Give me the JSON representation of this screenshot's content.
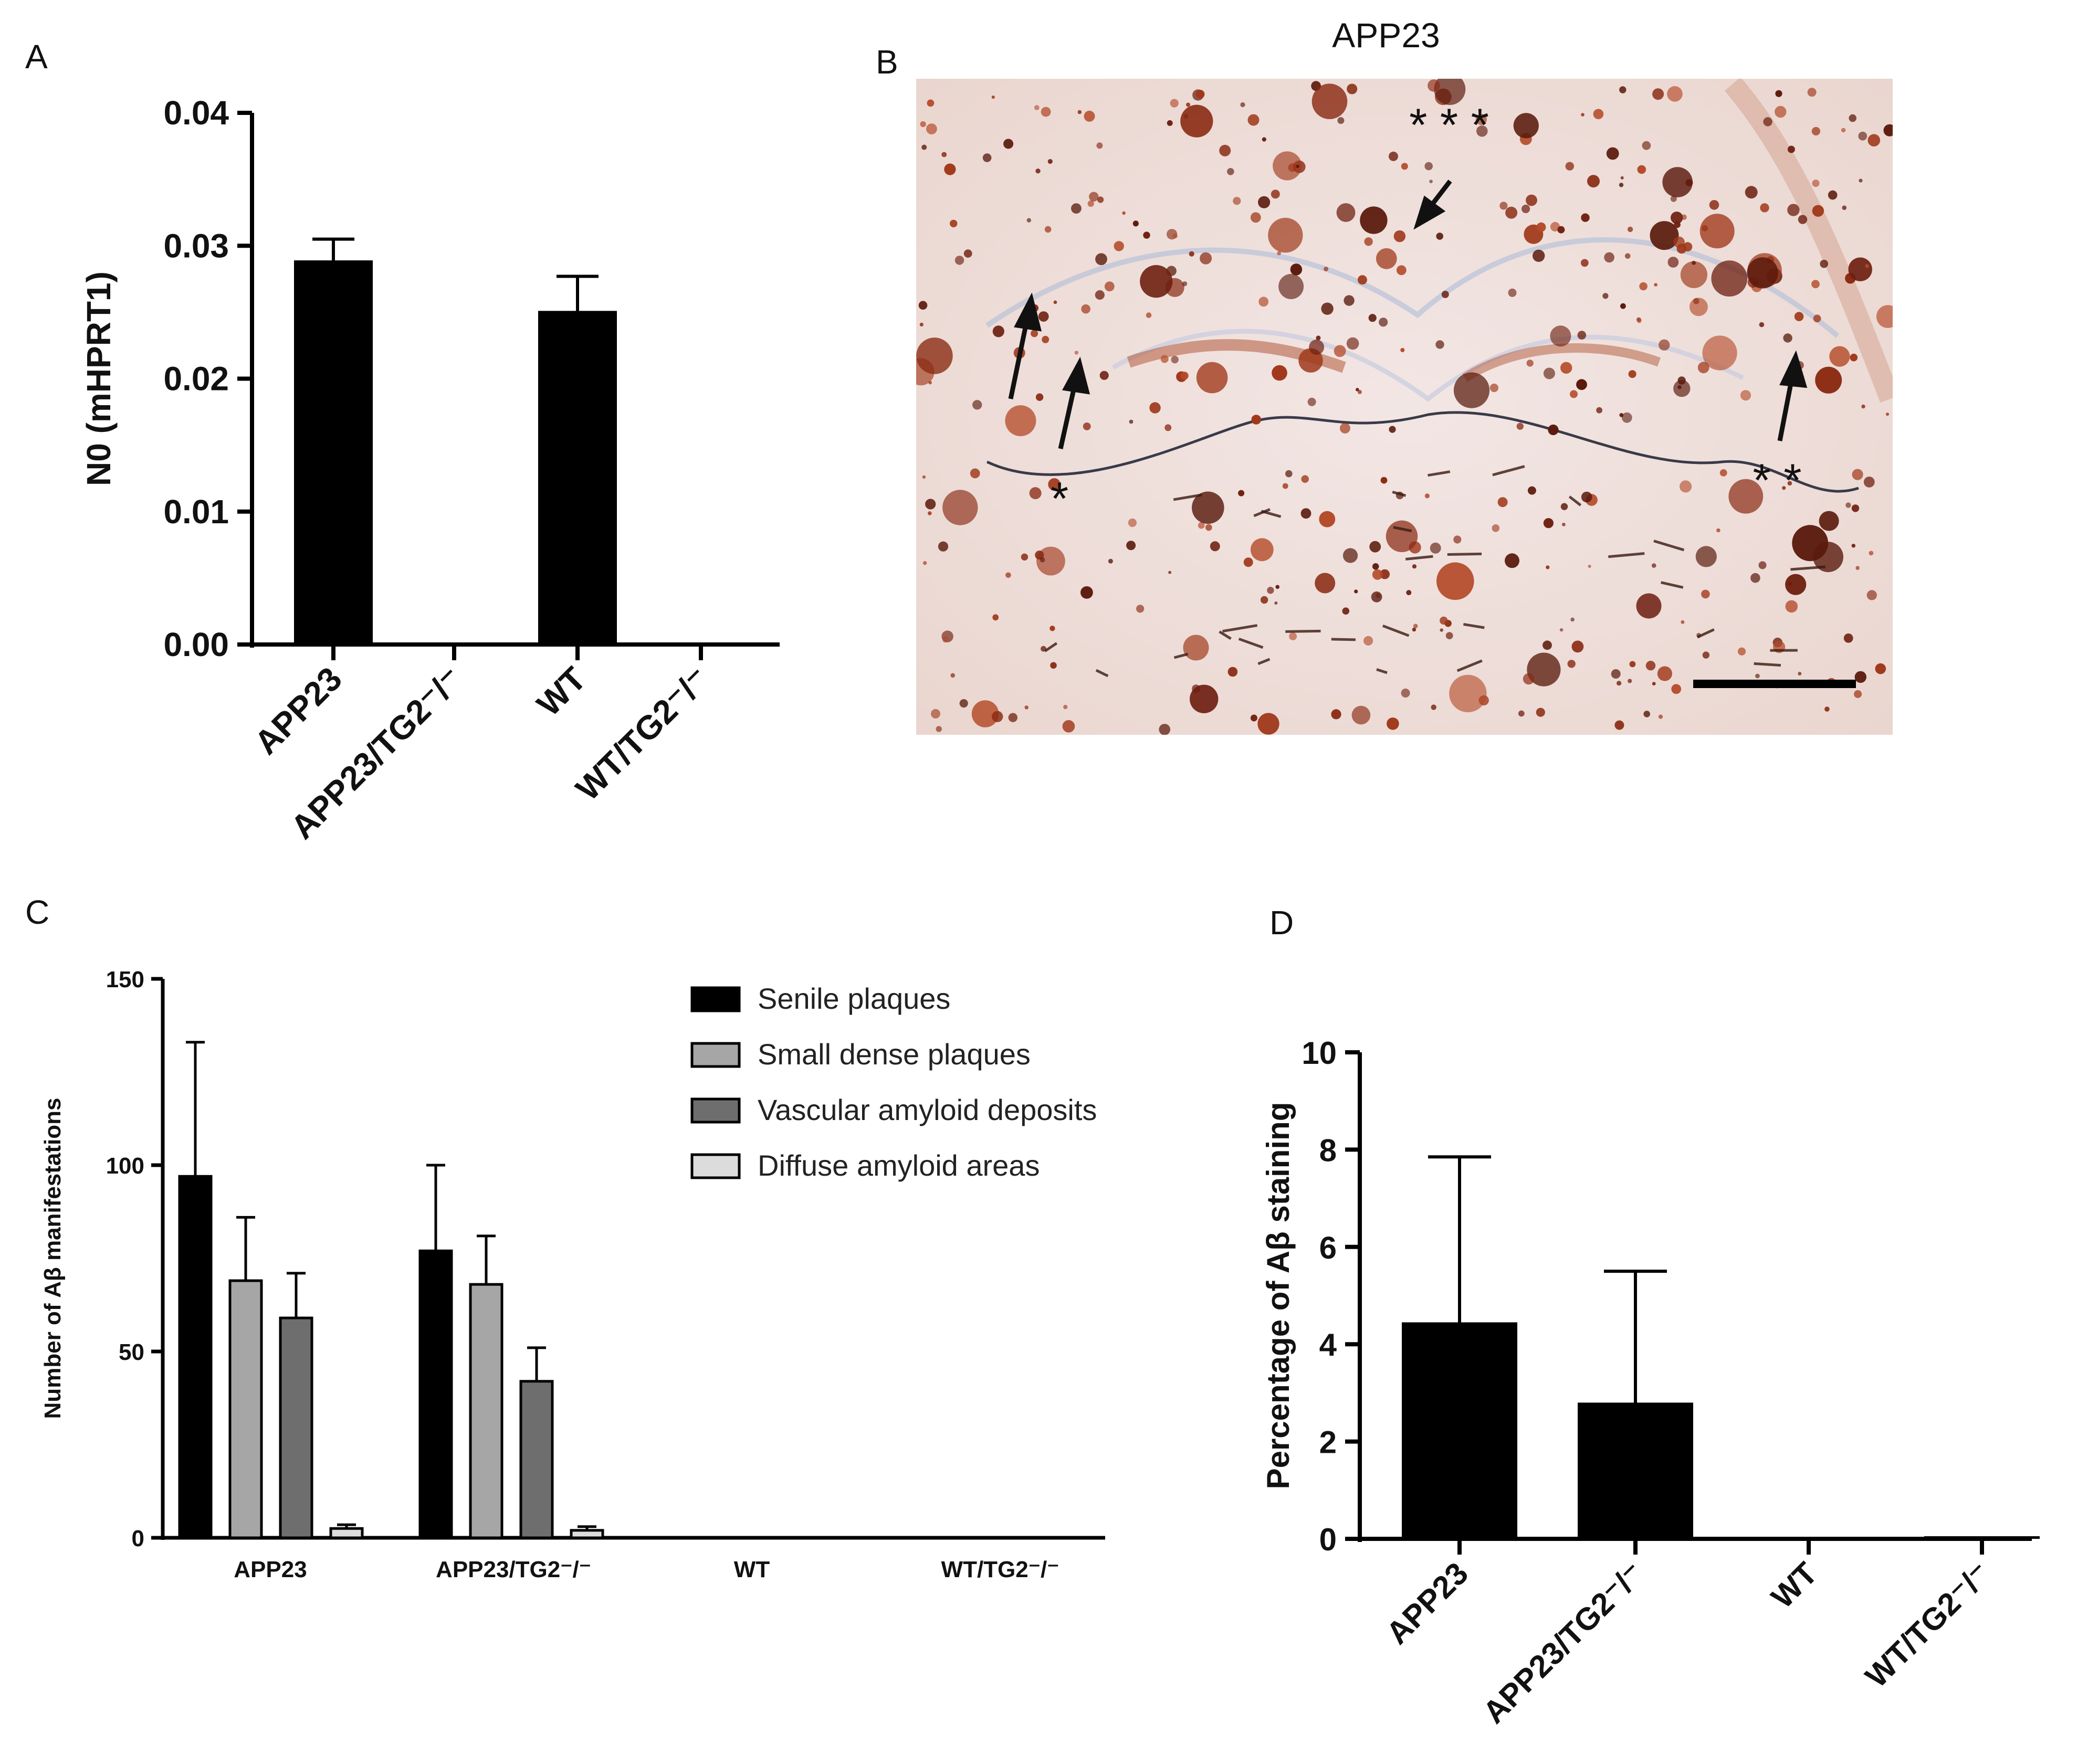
{
  "figure": {
    "panels": {
      "A": {
        "label": "A"
      },
      "B": {
        "label": "B",
        "title": "APP23",
        "annotations": [
          "* * *",
          "*",
          "* *"
        ]
      },
      "C": {
        "label": "C"
      },
      "D": {
        "label": "D"
      }
    }
  },
  "chart_data": [
    {
      "panel": "A",
      "type": "bar",
      "categories": [
        "APP23",
        "APP23/TG2⁻/⁻",
        "WT",
        "WT/TG2⁻/⁻"
      ],
      "values": [
        0.0289,
        0,
        0.0251,
        0
      ],
      "errors": [
        0.0016,
        0,
        0.0026,
        0
      ],
      "ylabel": "N0 (mHPRT1)",
      "ylim": [
        0,
        0.04
      ],
      "yticks": [
        "0.00",
        "0.01",
        "0.02",
        "0.03",
        "0.04"
      ],
      "colors": {
        "bar": "#000000"
      }
    },
    {
      "panel": "C",
      "type": "bar",
      "categories": [
        "APP23",
        "APP23/TG2⁻/⁻",
        "WT",
        "WT/TG2⁻/⁻"
      ],
      "series": [
        {
          "name": "Senile plaques",
          "values": [
            97,
            77,
            0,
            0
          ],
          "errors": [
            36,
            23,
            0,
            0
          ],
          "color": "#000000"
        },
        {
          "name": "Small dense plaques",
          "values": [
            69,
            68,
            0,
            0
          ],
          "errors": [
            17,
            13,
            0,
            0
          ],
          "color": "#a6a6a6"
        },
        {
          "name": "Vascular amyloid deposits",
          "values": [
            59,
            42,
            0,
            0
          ],
          "errors": [
            12,
            9,
            0,
            0
          ],
          "color": "#6e6e6e"
        },
        {
          "name": "Diffuse amyloid areas",
          "values": [
            2.5,
            2,
            0,
            0
          ],
          "errors": [
            1,
            1,
            0,
            0
          ],
          "color": "#dcdcdc"
        }
      ],
      "ylabel": "Number of Aβ manifestations",
      "ylim": [
        0,
        150
      ],
      "yticks": [
        "0",
        "50",
        "100",
        "150"
      ],
      "legend": "top-right"
    },
    {
      "panel": "D",
      "type": "bar",
      "categories": [
        "APP23",
        "APP23/TG2⁻/⁻",
        "WT",
        "WT/TG2⁻/⁻"
      ],
      "values": [
        4.45,
        2.8,
        0,
        0.05
      ],
      "errors": [
        3.4,
        2.7,
        0,
        0
      ],
      "ylabel": "Percentage of Aβ staining",
      "ylim": [
        0,
        10
      ],
      "yticks": [
        "0",
        "2",
        "4",
        "6",
        "8",
        "10"
      ],
      "colors": {
        "bar": "#000000"
      }
    }
  ]
}
